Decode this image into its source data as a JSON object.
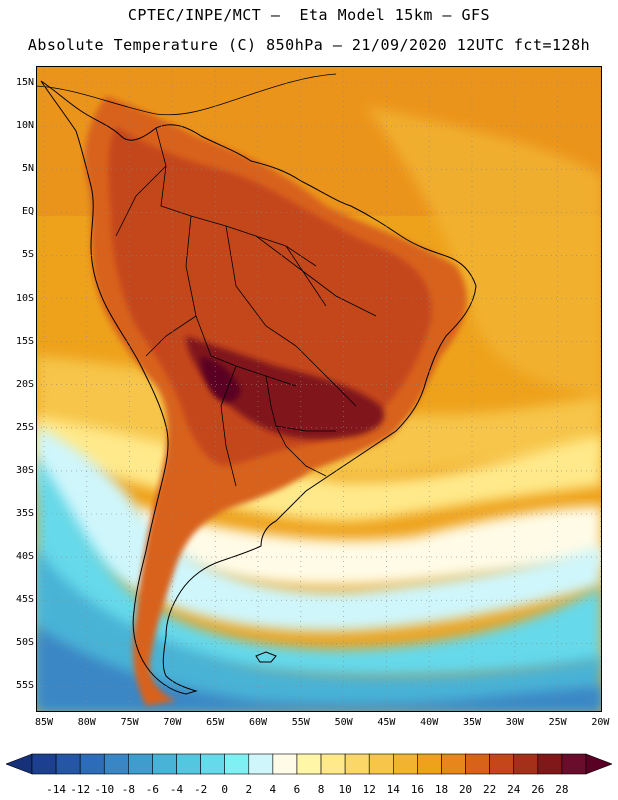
{
  "title_line1": "CPTEC/INPE/MCT –  Eta Model 15km – GFS",
  "title_line2": "Absolute Temperature (C) 850hPa – 21/09/2020 12UTC fct=128h",
  "lat_labels": [
    "15N",
    "10N",
    "5N",
    "EQ",
    "5S",
    "10S",
    "15S",
    "20S",
    "25S",
    "30S",
    "35S",
    "40S",
    "45S",
    "50S",
    "55S"
  ],
  "lon_labels": [
    "85W",
    "80W",
    "75W",
    "70W",
    "65W",
    "60W",
    "55W",
    "50W",
    "45W",
    "40W",
    "35W",
    "30W",
    "25W",
    "20W"
  ],
  "colorbar": {
    "ticks": [
      "-14",
      "-12",
      "-10",
      "-8",
      "-6",
      "-4",
      "-2",
      "0",
      "2",
      "4",
      "6",
      "8",
      "10",
      "12",
      "14",
      "16",
      "18",
      "20",
      "22",
      "24",
      "26",
      "28"
    ],
    "colors": [
      "#1c3f8f",
      "#2556a6",
      "#2d6cb8",
      "#3a86c5",
      "#3f9ccc",
      "#48b3d6",
      "#55c6e0",
      "#66d9ea",
      "#7ff0f4",
      "#cff6fb",
      "#fffbe6",
      "#fff6a8",
      "#ffe98a",
      "#fbd767",
      "#f6c54a",
      "#f2b330",
      "#eea21c",
      "#e7861a",
      "#d8621a",
      "#c4461a",
      "#a4301a",
      "#80181a",
      "#6a0c2c"
    ],
    "low_end_color": "#16307a",
    "high_end_color": "#5a0024"
  },
  "colors": {
    "ocean_warm": "#eea21c",
    "land_hot": "#c4461a",
    "land_hottest": "#80181a",
    "ocean_cold": "#48b3d6",
    "ocean_coldest": "#2d6cb8"
  }
}
